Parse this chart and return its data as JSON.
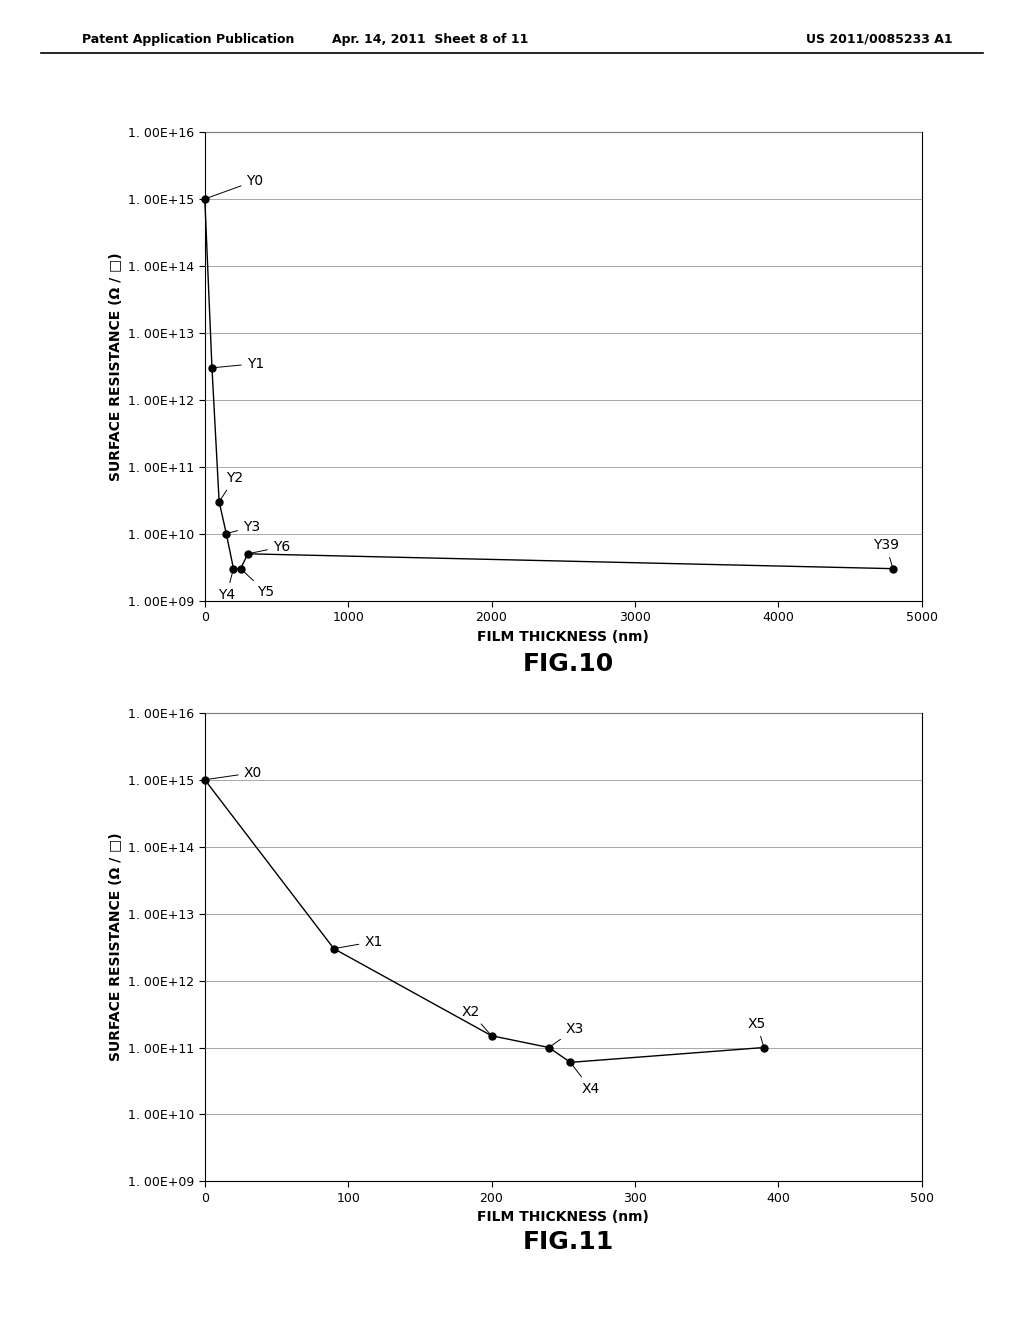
{
  "fig10": {
    "x": [
      0,
      50,
      100,
      150,
      200,
      250,
      300,
      4800
    ],
    "y": [
      1000000000000000.0,
      3000000000000.0,
      30000000000.0,
      10000000000.0,
      3000000000.0,
      3000000000.0,
      5000000000.0,
      3000000000.0
    ],
    "xlabel": "FILM THICKNESS (nm)",
    "ylabel": "SURFACE RESISTANCE (Ω / □)",
    "title": "FIG.10",
    "xlim": [
      0,
      5000
    ],
    "ylim_exp": [
      9,
      16
    ],
    "xticks": [
      0,
      1000,
      2000,
      3000,
      4000,
      5000
    ],
    "ytick_exps": [
      9,
      10,
      11,
      12,
      13,
      14,
      15,
      16
    ]
  },
  "fig11": {
    "x": [
      0,
      90,
      200,
      240,
      255,
      390
    ],
    "y": [
      1000000000000000.0,
      3000000000000.0,
      150000000000.0,
      100000000000.0,
      60000000000.0,
      100000000000.0
    ],
    "xlabel": "FILM THICKNESS (nm)",
    "ylabel": "SURFACE RESISTANCE (Ω / □)",
    "title": "FIG.11",
    "xlim": [
      0,
      500
    ],
    "ylim_exp": [
      9,
      16
    ],
    "xticks": [
      0,
      100,
      200,
      300,
      400,
      500
    ],
    "ytick_exps": [
      9,
      10,
      11,
      12,
      13,
      14,
      15,
      16
    ]
  },
  "header_left": "Patent Application Publication",
  "header_center": "Apr. 14, 2011  Sheet 8 of 11",
  "header_right": "US 2011/0085233 A1",
  "background_color": "#ffffff",
  "line_color": "#000000",
  "marker_color": "#000000",
  "text_color": "#000000",
  "font_size": 10,
  "label_font_size": 10,
  "title_font_size": 18
}
